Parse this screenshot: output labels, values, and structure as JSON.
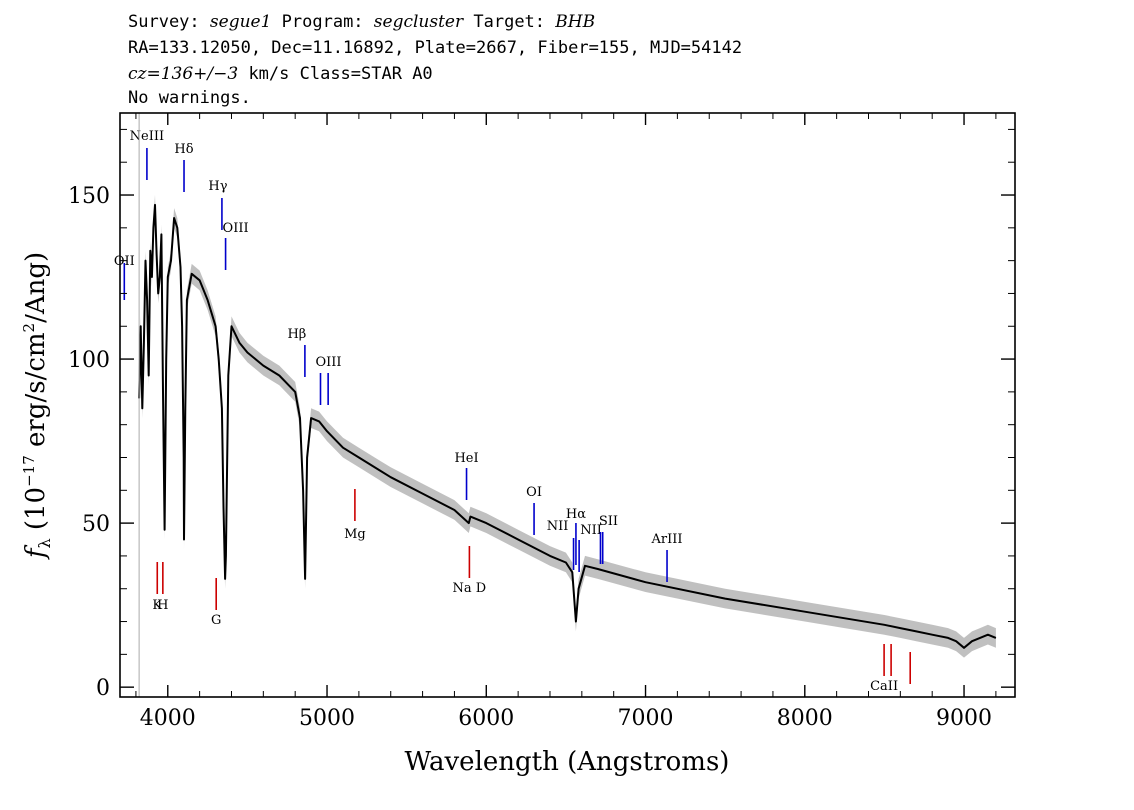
{
  "header": {
    "survey_label": "Survey:",
    "survey_value": "segue1",
    "program_label": "Program:",
    "program_value": "segcluster",
    "target_label": "Target:",
    "target_value": "BHB",
    "line2": "RA=133.12050, Dec=11.16892, Plate=2667, Fiber=155, MJD=54142",
    "cz_value": "cz=136+/−3",
    "cz_rest": " km/s Class=STAR A0",
    "warnings": "No warnings."
  },
  "chart_data": {
    "type": "line",
    "xlabel": "Wavelength (Angstroms)",
    "ylabel": "f_λ (10^-17 erg/s/cm^2/Ang)",
    "xlim": [
      3700,
      9320
    ],
    "ylim": [
      -3,
      175
    ],
    "xticks": [
      4000,
      5000,
      6000,
      7000,
      8000,
      9000
    ],
    "yticks": [
      0,
      50,
      100,
      150
    ],
    "colors": {
      "flux": "#000000",
      "error_band": "#b0b0b0",
      "emission": "#0000cc",
      "absorption": "#cc0000"
    },
    "series": [
      {
        "x": [
          3820,
          3830,
          3840,
          3850,
          3860,
          3870,
          3880,
          3890,
          3900,
          3910,
          3920,
          3930,
          3940,
          3950,
          3960,
          3970,
          3980,
          3990,
          4000,
          4020,
          4040,
          4060,
          4080,
          4090,
          4100,
          4102,
          4110,
          4120,
          4150,
          4200,
          4250,
          4300,
          4320,
          4340,
          4350,
          4360,
          4365,
          4380,
          4400,
          4450,
          4500,
          4600,
          4700,
          4800,
          4830,
          4850,
          4862,
          4875,
          4900,
          4950,
          5000,
          5100,
          5200,
          5400,
          5600,
          5800,
          5890,
          5900,
          6000,
          6200,
          6400,
          6500,
          6540,
          6563,
          6580,
          6620,
          6700,
          7000,
          7500,
          8000,
          8500,
          8600,
          8700,
          8800,
          8900,
          8950,
          9000,
          9050,
          9100,
          9150,
          9200
        ],
        "y": [
          88,
          110,
          85,
          105,
          130,
          118,
          95,
          133,
          125,
          140,
          147,
          132,
          120,
          125,
          138,
          90,
          48,
          100,
          125,
          130,
          143,
          140,
          128,
          110,
          70,
          45,
          85,
          118,
          126,
          124,
          118,
          110,
          100,
          85,
          55,
          33,
          40,
          95,
          110,
          105,
          102,
          98,
          95,
          90,
          82,
          60,
          33,
          70,
          82,
          81,
          78,
          73,
          70,
          64,
          59,
          54,
          50,
          52,
          50,
          45,
          40,
          38,
          35,
          20,
          30,
          37,
          36,
          32,
          27,
          23,
          19,
          18,
          17,
          16,
          15,
          14,
          12,
          14,
          15,
          16,
          15
        ]
      }
    ],
    "emission_lines": [
      {
        "label": "NeIII",
        "x": 3869
      },
      {
        "label": "Hδ",
        "x": 4102
      },
      {
        "label": "Hγ",
        "x": 4340
      },
      {
        "label": "OIII",
        "x": 4363
      },
      {
        "label": "Hβ",
        "x": 4861
      },
      {
        "label": "OIII",
        "x": 4959
      },
      {
        "label": "OIII",
        "x": 5007
      },
      {
        "label": "HeI",
        "x": 5876
      },
      {
        "label": "OI",
        "x": 6300
      },
      {
        "label": "NII",
        "x": 6548
      },
      {
        "label": "Hα",
        "x": 6563
      },
      {
        "label": "NII",
        "x": 6583
      },
      {
        "label": "SII",
        "x": 6717
      },
      {
        "label": "SII",
        "x": 6731
      },
      {
        "label": "ArIII",
        "x": 7135
      },
      {
        "label": "OII",
        "x": 3727
      }
    ],
    "absorption_lines": [
      {
        "label": "K",
        "x": 3934
      },
      {
        "label": "H",
        "x": 3969
      },
      {
        "label": "G",
        "x": 4304
      },
      {
        "label": "Mg",
        "x": 5175
      },
      {
        "label": "Na D",
        "x": 5894
      },
      {
        "label": "CaII",
        "x": 8498
      },
      {
        "label": "CaII",
        "x": 8542
      },
      {
        "label": "CaII",
        "x": 8662
      }
    ]
  }
}
